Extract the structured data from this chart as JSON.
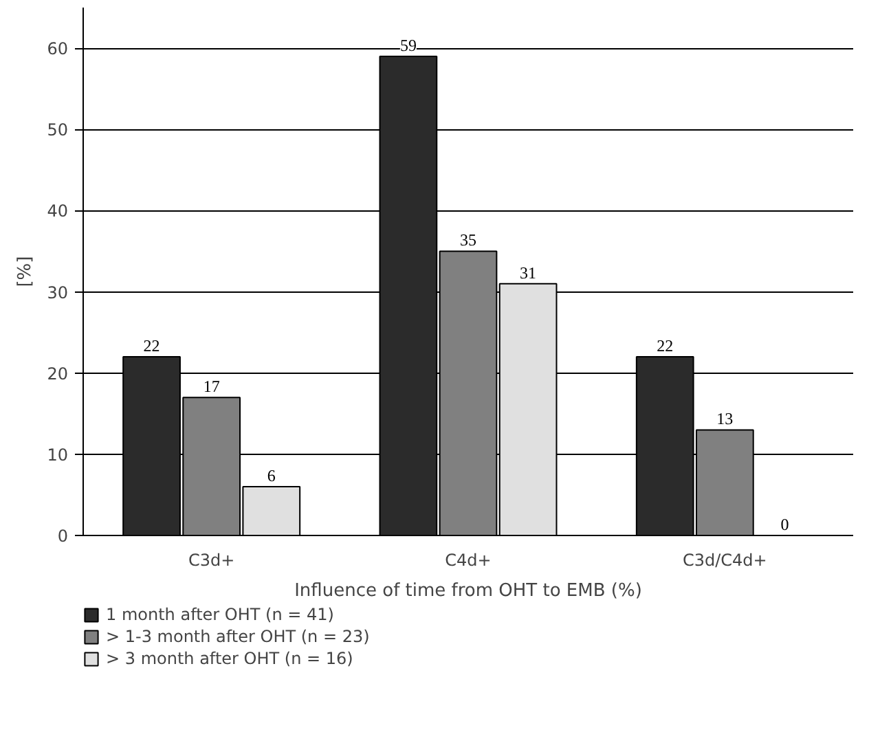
{
  "chart_data": {
    "type": "bar",
    "categories": [
      "C3d+",
      "C4d+",
      "C3d/C4d+"
    ],
    "series": [
      {
        "name": "1 month after OHT (n = 41)",
        "color": "#2b2b2b",
        "values": [
          22,
          59,
          22
        ]
      },
      {
        "name": "> 1-3 month after OHT (n = 23)",
        "color": "#808080",
        "values": [
          17,
          35,
          13
        ]
      },
      {
        "name": "> 3 month after OHT (n = 16)",
        "color": "#e0e0e0",
        "values": [
          6,
          31,
          0
        ]
      }
    ],
    "xlabel": "Influence of time from OHT to EMB (%)",
    "ylabel": "[%]",
    "ylim": [
      0,
      65
    ],
    "yticks": [
      0,
      10,
      20,
      30,
      40,
      50,
      60
    ],
    "data_labels": true,
    "grid": "y",
    "legend": "bottom left"
  }
}
